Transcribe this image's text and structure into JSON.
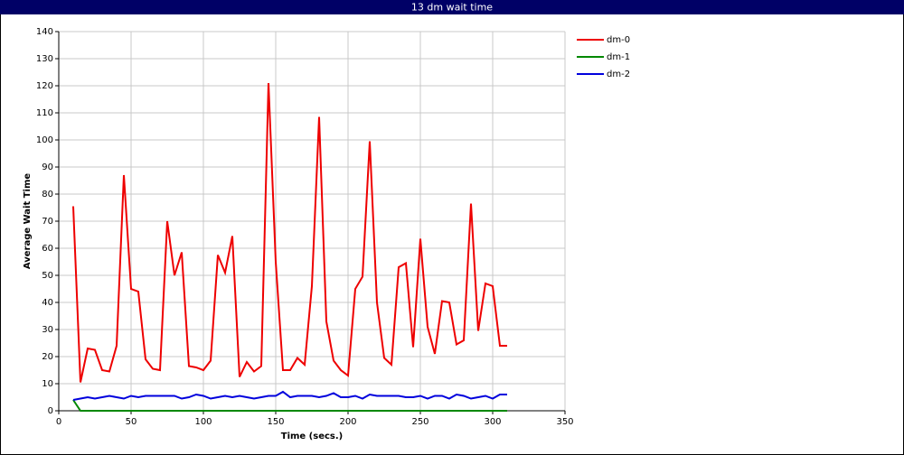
{
  "chart_data": {
    "type": "line",
    "title": "13 dm wait time",
    "x_label": "Time (secs.)",
    "y_label": "Average Wait Time",
    "x": [
      10,
      15,
      20,
      25,
      30,
      35,
      40,
      45,
      50,
      55,
      60,
      65,
      70,
      75,
      80,
      85,
      90,
      95,
      100,
      105,
      110,
      115,
      120,
      125,
      130,
      135,
      140,
      145,
      150,
      155,
      160,
      165,
      170,
      175,
      180,
      185,
      190,
      195,
      200,
      205,
      210,
      215,
      220,
      225,
      230,
      235,
      240,
      245,
      250,
      255,
      260,
      265,
      270,
      275,
      280,
      285,
      290,
      295,
      300,
      305,
      310
    ],
    "series": [
      {
        "name": "dm-0",
        "color": "#ee0000",
        "values": [
          75.5,
          10.5,
          23,
          22.5,
          15,
          14.5,
          24,
          87,
          45,
          44,
          19,
          15.5,
          15,
          70,
          50,
          58.5,
          16.5,
          16,
          15,
          18.5,
          57.5,
          51,
          64.5,
          12.5,
          18,
          14.5,
          16.5,
          121,
          55,
          15,
          15,
          19.5,
          17,
          46,
          108.5,
          33,
          18.5,
          15,
          13,
          45,
          49.5,
          99.5,
          40,
          19.5,
          17,
          53,
          54.5,
          23.5,
          63.5,
          31,
          21,
          40.5,
          40,
          24.5,
          26,
          76.5,
          29.5,
          47,
          46,
          24,
          24
        ]
      },
      {
        "name": "dm-1",
        "color": "#008800",
        "values": [
          4,
          0,
          0,
          0,
          0,
          0,
          0,
          0,
          0,
          0,
          0,
          0,
          0,
          0,
          0,
          0,
          0,
          0,
          0,
          0,
          0,
          0,
          0,
          0,
          0,
          0,
          0,
          0,
          0,
          0,
          0,
          0,
          0,
          0,
          0,
          0,
          0,
          0,
          0,
          0,
          0,
          0,
          0,
          0,
          0,
          0,
          0,
          0,
          0,
          0,
          0,
          0,
          0,
          0,
          0,
          0,
          0,
          0,
          0,
          0,
          0
        ]
      },
      {
        "name": "dm-2",
        "color": "#0000dd",
        "values": [
          4,
          4.5,
          5,
          4.5,
          5,
          5.5,
          5,
          4.5,
          5.5,
          5,
          5.5,
          5.5,
          5.5,
          5.5,
          5.5,
          4.5,
          5,
          6,
          5.5,
          4.5,
          5,
          5.5,
          5,
          5.5,
          5,
          4.5,
          5,
          5.5,
          5.5,
          7,
          5,
          5.5,
          5.5,
          5.5,
          5,
          5.5,
          6.5,
          5,
          5,
          5.5,
          4.5,
          6,
          5.5,
          5.5,
          5.5,
          5.5,
          5,
          5,
          5.5,
          4.5,
          5.5,
          5.5,
          4.5,
          6,
          5.5,
          4.5,
          5,
          5.5,
          4.5,
          6,
          6
        ]
      }
    ],
    "xlim": [
      0,
      350
    ],
    "xticks": [
      0,
      50,
      100,
      150,
      200,
      250,
      300,
      350
    ],
    "ylim": [
      0,
      140
    ],
    "yticks": [
      0,
      10,
      20,
      30,
      40,
      50,
      60,
      70,
      80,
      90,
      100,
      110,
      120,
      130,
      140
    ],
    "grid": true
  }
}
